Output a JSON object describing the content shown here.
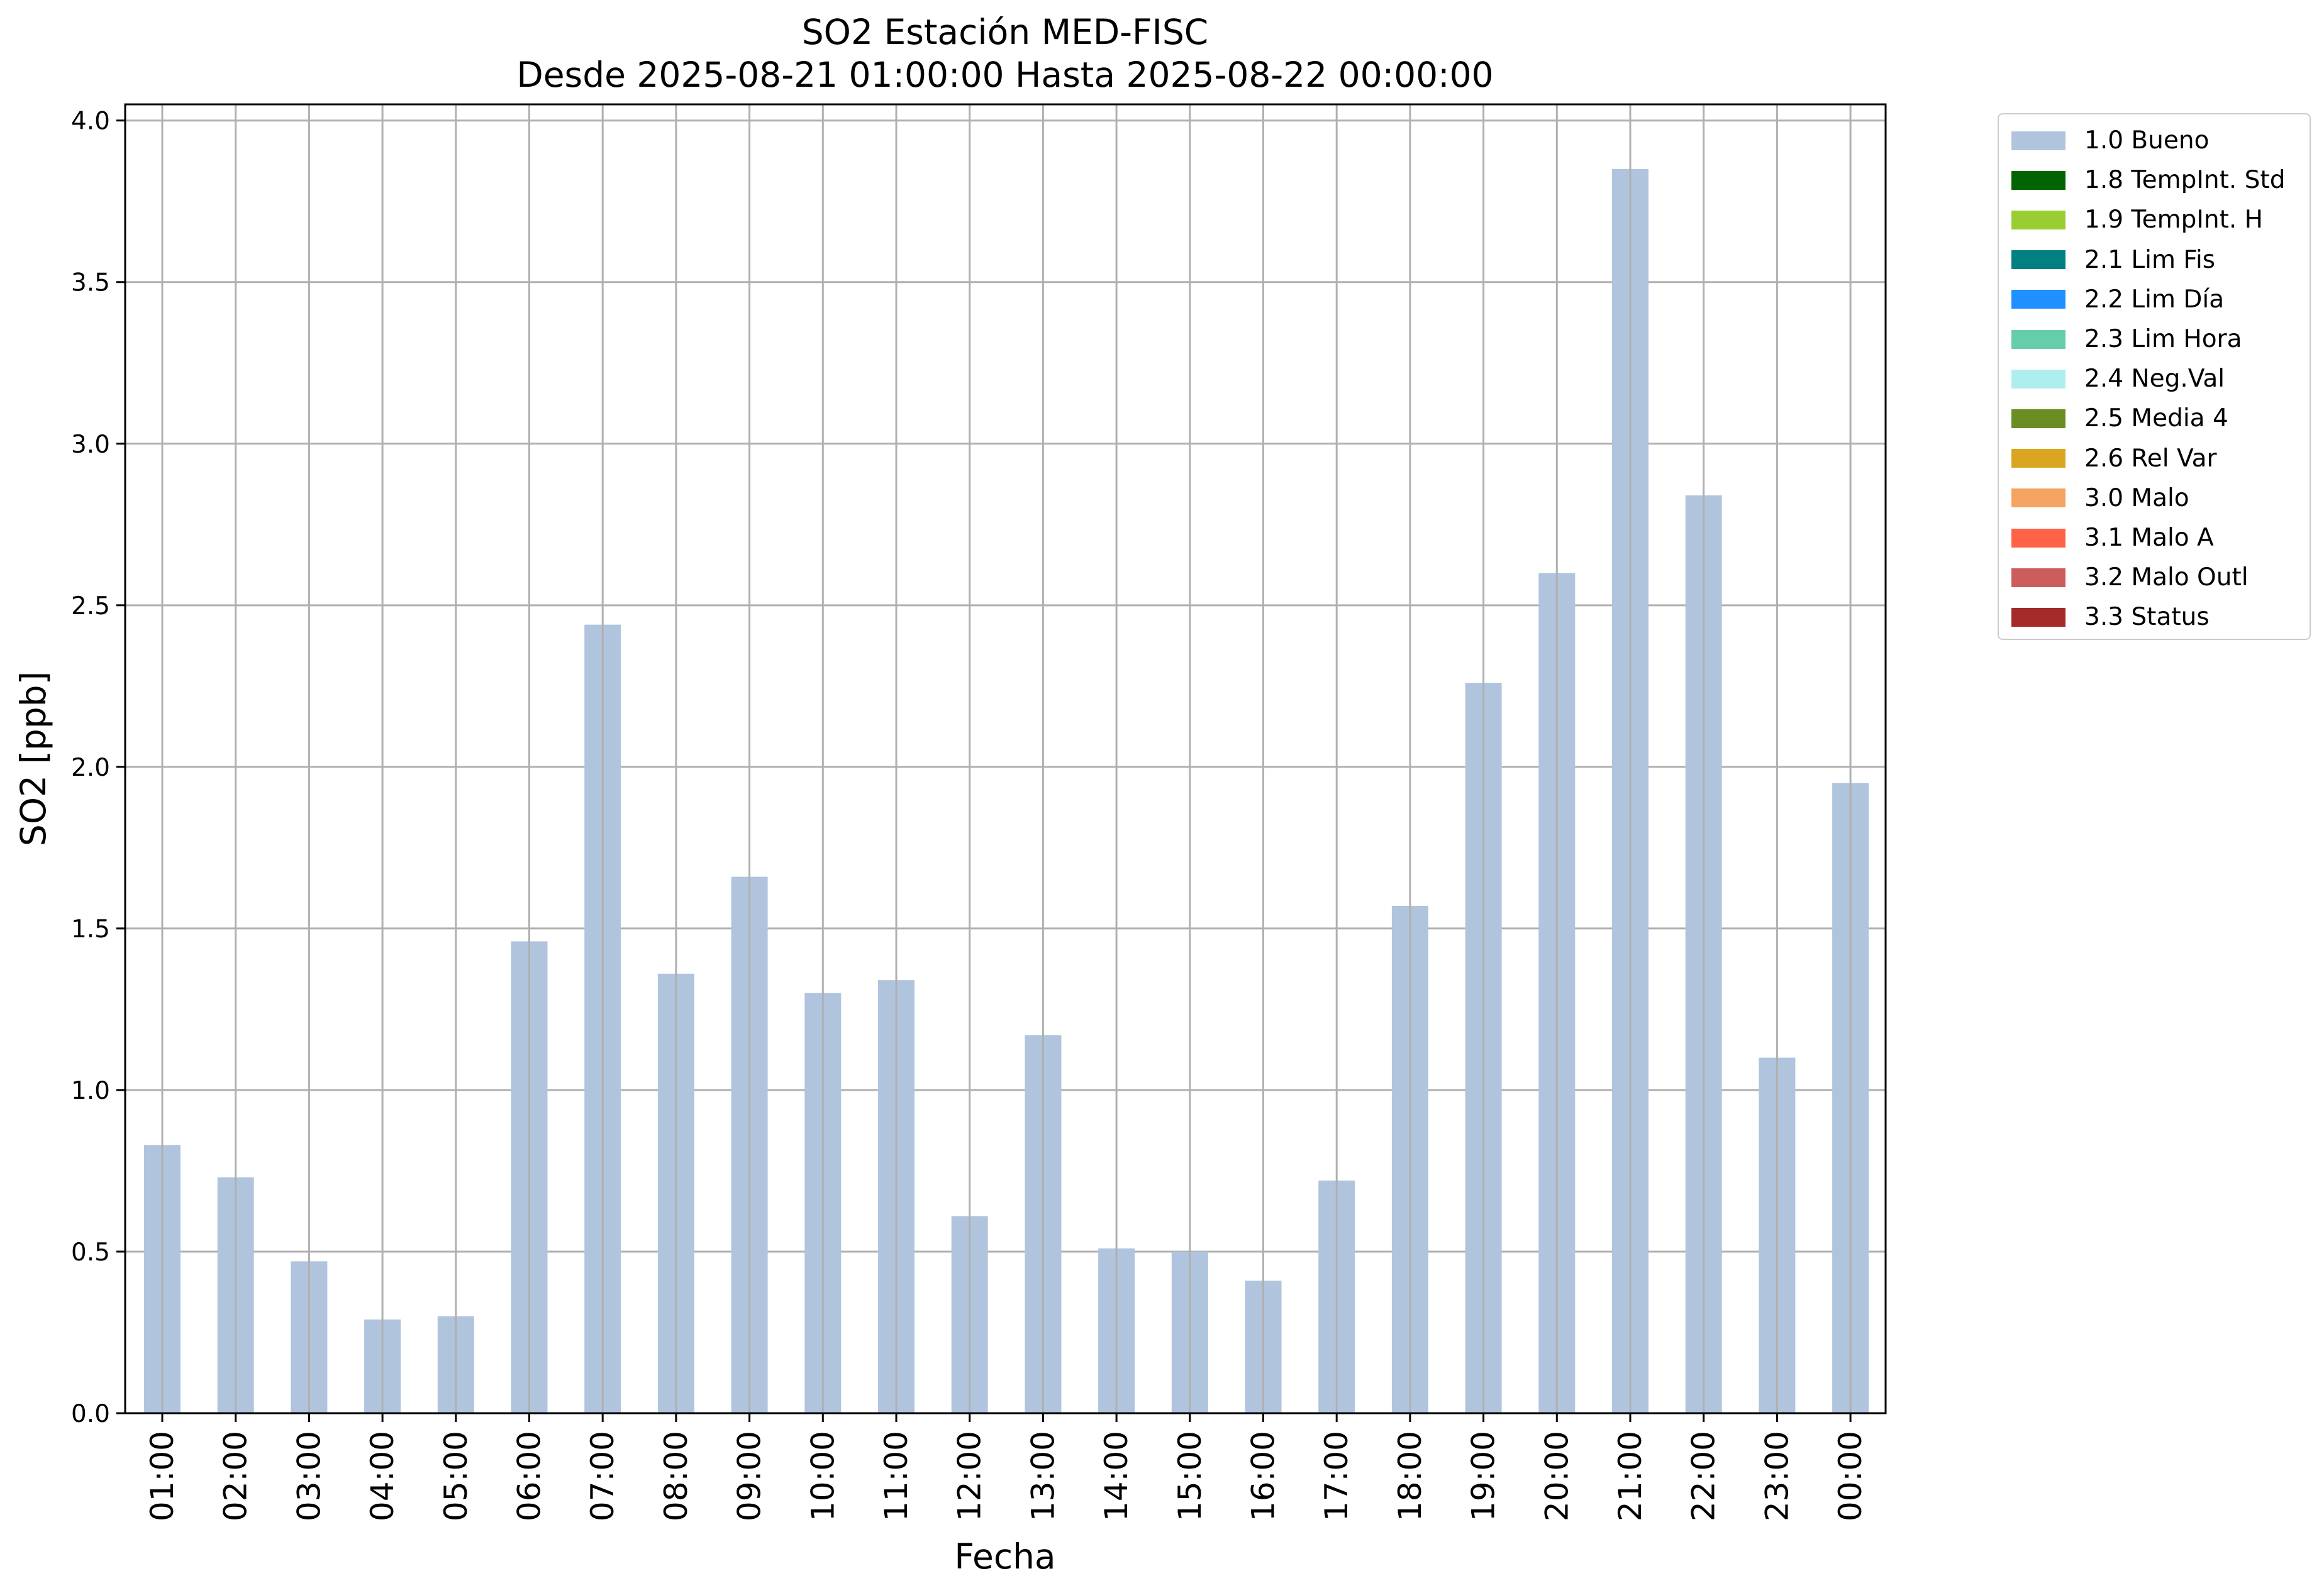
{
  "chart_data": {
    "type": "bar",
    "title": "SO2 Estación MED-FISC",
    "subtitle": "Desde 2025-08-21 01:00:00 Hasta 2025-08-22 00:00:00",
    "xlabel": "Fecha",
    "ylabel": "SO2 [ppb]",
    "ylim": [
      0,
      4.05
    ],
    "yticks": [
      "0.0",
      "0.5",
      "1.0",
      "1.5",
      "2.0",
      "2.5",
      "3.0",
      "3.5",
      "4.0"
    ],
    "grid": true,
    "legend_position": "outside-top-right",
    "categories": [
      "01:00",
      "02:00",
      "03:00",
      "04:00",
      "05:00",
      "06:00",
      "07:00",
      "08:00",
      "09:00",
      "10:00",
      "11:00",
      "12:00",
      "13:00",
      "14:00",
      "15:00",
      "16:00",
      "17:00",
      "18:00",
      "19:00",
      "20:00",
      "21:00",
      "22:00",
      "23:00",
      "00:00"
    ],
    "series": [
      {
        "name": "1.0 Bueno",
        "color": "#b0c4de",
        "values": [
          0.83,
          0.73,
          0.47,
          0.29,
          0.3,
          1.46,
          2.44,
          1.36,
          1.66,
          1.3,
          1.34,
          0.61,
          1.17,
          0.51,
          0.5,
          0.41,
          0.72,
          1.57,
          2.26,
          2.6,
          3.85,
          2.84,
          1.1,
          1.95
        ]
      }
    ],
    "legend": [
      {
        "label": "1.0 Bueno",
        "color": "#b0c4de"
      },
      {
        "label": "1.8 TempInt. Std",
        "color": "#006400"
      },
      {
        "label": "1.9 TempInt. H",
        "color": "#9acd32"
      },
      {
        "label": "2.1 Lim Fis",
        "color": "#008080"
      },
      {
        "label": "2.2 Lim Día",
        "color": "#1e90ff"
      },
      {
        "label": "2.3 Lim Hora",
        "color": "#66cdaa"
      },
      {
        "label": "2.4 Neg.Val",
        "color": "#afeeee"
      },
      {
        "label": "2.5 Media 4",
        "color": "#6b8e23"
      },
      {
        "label": "2.6 Rel Var",
        "color": "#daa520"
      },
      {
        "label": "3.0 Malo",
        "color": "#f4a460"
      },
      {
        "label": "3.1 Malo A",
        "color": "#ff6347"
      },
      {
        "label": "3.2 Malo Outl",
        "color": "#cd5c5c"
      },
      {
        "label": "3.3 Status",
        "color": "#a52a2a"
      }
    ]
  }
}
